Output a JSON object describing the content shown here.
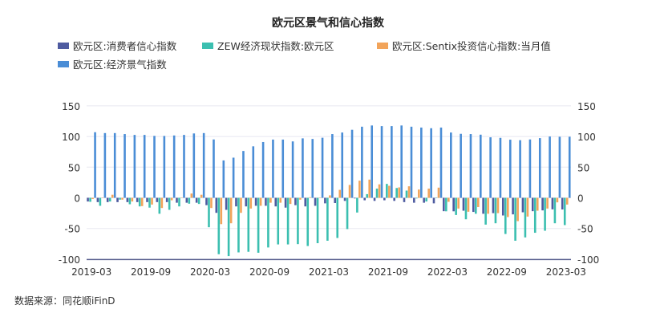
{
  "chart_data": {
    "type": "bar",
    "title": "欧元区景气和信心指数",
    "source": "数据来源：同花顺iFinD",
    "ylim": [
      -100,
      150
    ],
    "yticks": [
      150,
      100,
      50,
      0,
      -50,
      -100
    ],
    "y2ticks": [
      150,
      100,
      50,
      0,
      -50,
      -100
    ],
    "grid": true,
    "legend": "top",
    "xticks": [
      "2019-03",
      "2019-09",
      "2020-03",
      "2020-09",
      "2021-03",
      "2021-09",
      "2022-03",
      "2022-09",
      "2023-03"
    ],
    "x_start": "2019-03",
    "x_end": "2023-03",
    "series": [
      {
        "name": "欧元区:消费者信心指数",
        "color": "#4E5BA0",
        "values": [
          -6,
          -7,
          -7,
          -7,
          -7,
          -7,
          -7,
          -7,
          -7,
          -8,
          -8,
          -8,
          -12,
          -24.5,
          -19.6,
          -14,
          -14,
          -13,
          -13,
          -14,
          -16,
          -12,
          -14,
          -13,
          -9,
          -8.5,
          -5,
          -1,
          -4,
          -5,
          -4,
          -5,
          -7,
          -8,
          -8,
          -9,
          -21.8,
          -22,
          -21,
          -23,
          -26,
          -25,
          -28.8,
          -27,
          -23.6,
          -21.8,
          -20.5,
          -18.8,
          -19
        ]
      },
      {
        "name": "ZEW经济现状指数:欧元区",
        "color": "#3BBFB0",
        "values": [
          -6.5,
          -13,
          -6,
          -3,
          -10.5,
          -14,
          -16,
          -26,
          -19.6,
          -14,
          -9.6,
          -10,
          -48,
          -92,
          -95,
          -89,
          -88,
          -89.6,
          -81,
          -76,
          -76,
          -75.5,
          -78.6,
          -74,
          -70,
          -65.5,
          -51,
          -24,
          6,
          15,
          22.7,
          16,
          11.8,
          -1,
          -6,
          0,
          -22,
          -28,
          -35,
          -26,
          -43.7,
          -41.5,
          -59,
          -70,
          -64.6,
          -57,
          -53.7,
          -41.5,
          -44.5
        ]
      },
      {
        "name": "欧元区:Sentix投资信心指数:当月值",
        "color": "#F2A45A",
        "values": [
          -2,
          0,
          5,
          -3,
          -6,
          -13.5,
          -11,
          -16.6,
          -4,
          0,
          7,
          5,
          -16.6,
          -42.9,
          -41.5,
          -24.5,
          -17.5,
          -13,
          -8,
          -8,
          -10,
          -3,
          1,
          0,
          4,
          13,
          21,
          28,
          29.7,
          22,
          19.6,
          17,
          18.8,
          13.5,
          15,
          16.6,
          -6.5,
          -17.5,
          -22.7,
          -15,
          -26,
          -25,
          -31.4,
          -38,
          -30.6,
          -21,
          -17.5,
          -7.4,
          -11
        ]
      },
      {
        "name": "欧元区:经济景气指数",
        "color": "#4A8DD6",
        "values": [
          107,
          105.6,
          105.6,
          104,
          102.6,
          102.6,
          101,
          100.9,
          101.7,
          102.6,
          105,
          105.6,
          95.2,
          61,
          65.5,
          76.4,
          84,
          91,
          95,
          95,
          92,
          97,
          96,
          98,
          104,
          106.5,
          111,
          116,
          118,
          117,
          117,
          118,
          116,
          114.6,
          113.5,
          114.6,
          106.5,
          104.4,
          104,
          103,
          98.7,
          97.8,
          94.8,
          94,
          95.2,
          97.4,
          100,
          99.6,
          99.6
        ]
      }
    ]
  }
}
